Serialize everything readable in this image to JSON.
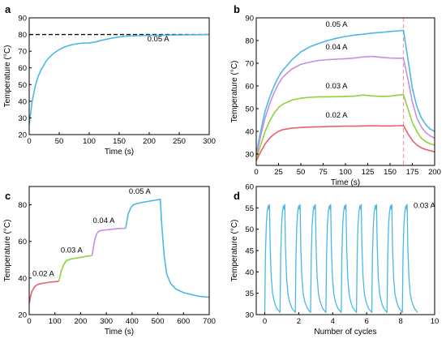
{
  "chart_data": [
    {
      "panel": "a",
      "type": "line",
      "xlabel": "Time (s)",
      "ylabel": "Temperature (°C)",
      "xlim": [
        0,
        300
      ],
      "ylim": [
        20,
        90
      ],
      "xticks": [
        0,
        50,
        100,
        150,
        200,
        250,
        300
      ],
      "yticks": [
        20,
        30,
        40,
        50,
        60,
        70,
        80,
        90
      ],
      "reference_line": {
        "y": 80,
        "style": "dashed",
        "color": "#000000"
      },
      "annotations": [
        {
          "text": "0.05 A",
          "x": 215,
          "y": 76
        }
      ],
      "series": [
        {
          "name": "0.05 A",
          "color": "#4db8e6",
          "x": [
            0,
            5,
            10,
            15,
            20,
            30,
            40,
            50,
            60,
            70,
            80,
            90,
            100,
            110,
            120,
            140,
            160,
            180,
            200,
            220,
            240,
            260,
            280,
            300
          ],
          "y": [
            26,
            40,
            49,
            55,
            59,
            65,
            68.5,
            71,
            72.7,
            73.8,
            74.5,
            74.9,
            75,
            75.5,
            76.5,
            78,
            79,
            79.3,
            79.5,
            79.6,
            79.7,
            79.8,
            79.9,
            80
          ]
        }
      ]
    },
    {
      "panel": "b",
      "type": "line",
      "xlabel": "Time (s)",
      "ylabel": "Temperature (°C)",
      "xlim": [
        0,
        200
      ],
      "ylim": [
        25,
        90
      ],
      "xticks": [
        0,
        25,
        50,
        75,
        100,
        125,
        150,
        175,
        200
      ],
      "yticks": [
        30,
        40,
        50,
        60,
        70,
        80,
        90
      ],
      "reference_vline": {
        "x": 165,
        "style": "dashed",
        "color": "#f2a0a8"
      },
      "annotations": [
        {
          "text": "0.05 A",
          "x": 90,
          "y": 86
        },
        {
          "text": "0.04 A",
          "x": 90,
          "y": 76
        },
        {
          "text": "0.03 A",
          "x": 90,
          "y": 59
        },
        {
          "text": "0.02 A",
          "x": 90,
          "y": 46
        }
      ],
      "series": [
        {
          "name": "0.05 A",
          "color": "#4db8e6",
          "x": [
            0,
            5,
            10,
            15,
            20,
            25,
            30,
            40,
            50,
            60,
            70,
            80,
            90,
            100,
            110,
            120,
            130,
            140,
            150,
            160,
            165,
            170,
            175,
            180,
            185,
            190,
            195,
            200
          ],
          "y": [
            30,
            40,
            49,
            55,
            60,
            64,
            67,
            71.5,
            75,
            77.2,
            78.7,
            80,
            81,
            81.8,
            82.4,
            82.8,
            83.3,
            83.6,
            84,
            84.3,
            84.5,
            72,
            59,
            51,
            46,
            43,
            41,
            40
          ]
        },
        {
          "name": "0.04 A",
          "color": "#c98ee0",
          "x": [
            0,
            5,
            10,
            15,
            20,
            25,
            30,
            40,
            50,
            60,
            70,
            80,
            90,
            100,
            110,
            120,
            130,
            140,
            150,
            160,
            165,
            170,
            175,
            180,
            185,
            190,
            195,
            200
          ],
          "y": [
            29,
            38,
            46,
            52,
            57,
            61,
            64,
            67.5,
            69.5,
            70.5,
            71.2,
            71.6,
            71.8,
            72,
            72.3,
            72.8,
            73,
            72.6,
            72.3,
            72.2,
            72.2,
            63,
            53,
            46,
            42,
            39.5,
            38,
            37
          ]
        },
        {
          "name": "0.03 A",
          "color": "#8fd13f",
          "x": [
            0,
            5,
            10,
            15,
            20,
            25,
            30,
            40,
            50,
            60,
            70,
            80,
            90,
            100,
            110,
            120,
            130,
            140,
            150,
            160,
            165,
            170,
            175,
            180,
            185,
            190,
            195,
            200
          ],
          "y": [
            28,
            34,
            40,
            44.5,
            48,
            50.5,
            52,
            53.8,
            54.6,
            55,
            55.2,
            55.2,
            55.3,
            55.4,
            55.5,
            56,
            55.6,
            55.4,
            55.5,
            56,
            56.3,
            50,
            44,
            40,
            37,
            35.5,
            34.5,
            34
          ]
        },
        {
          "name": "0.02 A",
          "color": "#e8606a",
          "x": [
            0,
            5,
            10,
            15,
            20,
            25,
            30,
            40,
            50,
            60,
            70,
            80,
            90,
            100,
            110,
            120,
            130,
            140,
            150,
            160,
            165,
            170,
            175,
            180,
            185,
            190,
            195,
            200
          ],
          "y": [
            27,
            31,
            34.5,
            37,
            38.8,
            40,
            40.8,
            41.4,
            41.7,
            41.9,
            42,
            42.1,
            42.2,
            42.3,
            42.3,
            42.4,
            42.5,
            42.4,
            42.4,
            42.5,
            42.6,
            39,
            36,
            34,
            32.8,
            32,
            31.5,
            31
          ]
        }
      ]
    },
    {
      "panel": "c",
      "type": "line",
      "xlabel": "Time (s)",
      "ylabel": "Temperature (°C)",
      "xlim": [
        0,
        700
      ],
      "ylim": [
        20,
        90
      ],
      "xticks": [
        0,
        100,
        200,
        300,
        400,
        500,
        600,
        700
      ],
      "yticks": [
        20,
        40,
        60,
        80
      ],
      "annotations": [
        {
          "text": "0.02 A",
          "x": 55,
          "y": 41
        },
        {
          "text": "0.03 A",
          "x": 165,
          "y": 54
        },
        {
          "text": "0.04 A",
          "x": 290,
          "y": 70
        },
        {
          "text": "0.05 A",
          "x": 430,
          "y": 86
        }
      ],
      "series": [
        {
          "name": "0.02 A",
          "color": "#e8606a",
          "x": [
            0,
            5,
            10,
            20,
            30,
            40,
            60,
            80,
            100,
            115
          ],
          "y": [
            26,
            30,
            32.5,
            35,
            36.2,
            36.8,
            37.3,
            37.7,
            38,
            38.2
          ]
        },
        {
          "name": "0.03 A",
          "color": "#8fd13f",
          "x": [
            115,
            120,
            125,
            135,
            145,
            160,
            180,
            200,
            220,
            240,
            245
          ],
          "y": [
            38.2,
            41,
            44,
            47.5,
            49.5,
            50.3,
            50.8,
            51.3,
            51.8,
            52.2,
            52.4
          ]
        },
        {
          "name": "0.04 A",
          "color": "#c98ee0",
          "x": [
            245,
            250,
            255,
            262,
            270,
            280,
            300,
            320,
            340,
            360,
            375
          ],
          "y": [
            52.4,
            57,
            61,
            64,
            65.5,
            66,
            66.3,
            66.6,
            66.9,
            67.1,
            67.2
          ]
        },
        {
          "name": "0.05 A",
          "color": "#4db8e6",
          "x": [
            375,
            380,
            385,
            395,
            405,
            420,
            440,
            460,
            480,
            500,
            510,
            515,
            525,
            535,
            550,
            570,
            600,
            630,
            660,
            700
          ],
          "y": [
            67.2,
            71,
            75,
            78.5,
            80,
            80.7,
            81.3,
            81.8,
            82.3,
            82.8,
            83,
            70,
            52,
            42,
            37,
            34,
            32,
            31,
            30,
            29.5
          ]
        }
      ]
    },
    {
      "panel": "d",
      "type": "line",
      "xlabel": "Number of cycles",
      "ylabel": "Temperature (°C)",
      "xlim": [
        -0.5,
        10
      ],
      "ylim": [
        30,
        60
      ],
      "xticks": [
        0,
        2,
        4,
        6,
        8,
        10
      ],
      "yticks": [
        30,
        35,
        40,
        45,
        50,
        55,
        60
      ],
      "annotations": [
        {
          "text": "0.03 A",
          "x": 9.4,
          "y": 55
        }
      ],
      "cycle": {
        "count": 10,
        "period": 0.9,
        "start": 0,
        "min": 30.5,
        "peak": 55.5,
        "color": "#4db8e6"
      }
    }
  ]
}
